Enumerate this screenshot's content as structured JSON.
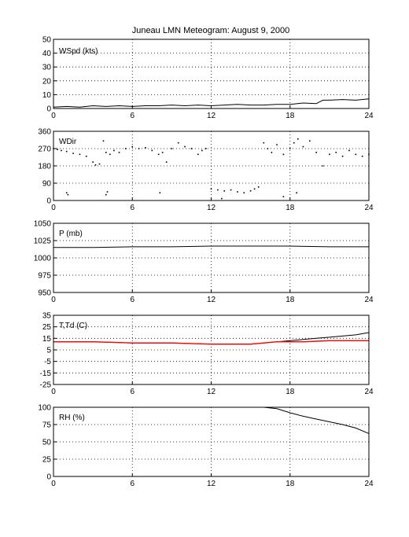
{
  "figure": {
    "title": "Juneau LMN Meteogram:    August  9, 2000"
  },
  "colors": {
    "line": "#000000",
    "dewpoint": "#ff0000",
    "background": "#ffffff"
  },
  "chart_data": [
    {
      "type": "line",
      "label": "WSpd (kts)",
      "xlim": [
        0,
        24
      ],
      "ylim": [
        0,
        50
      ],
      "xticks": [
        0,
        6,
        12,
        18,
        24
      ],
      "yticks": [
        0,
        10,
        20,
        30,
        40,
        50
      ],
      "grid": true,
      "series": [
        {
          "color": "#000000",
          "x": [
            0,
            1,
            2,
            3,
            4,
            5,
            6,
            7,
            8,
            9,
            10,
            11,
            12,
            13,
            14,
            15,
            16,
            17,
            18,
            19,
            20,
            20.5,
            21,
            22,
            23,
            24
          ],
          "y": [
            1,
            1.5,
            1,
            2,
            1.5,
            2,
            1.5,
            2,
            2,
            2.5,
            2,
            2.5,
            2,
            2.5,
            3,
            2.5,
            2.5,
            3,
            3,
            4,
            3.5,
            6,
            6,
            6.5,
            6,
            7
          ]
        }
      ]
    },
    {
      "type": "scatter",
      "label": "WDir",
      "xlim": [
        0,
        24
      ],
      "ylim": [
        0,
        360
      ],
      "xticks": [
        0,
        6,
        12,
        18,
        24
      ],
      "yticks": [
        0,
        90,
        180,
        270,
        360
      ],
      "grid": true,
      "series": [
        {
          "color": "#000000",
          "x": [
            0,
            0.3,
            0.6,
            1,
            1.5,
            2,
            2.5,
            3,
            3.2,
            3.5,
            3.8,
            4,
            4.3,
            4.6,
            5,
            5.5,
            6,
            6.5,
            7,
            7.5,
            8,
            8.3,
            8.6,
            9,
            9.5,
            10,
            10.5,
            11,
            11.3,
            11.6,
            12,
            12.5,
            13,
            13.5,
            14,
            14.5,
            15,
            15.3,
            15.6,
            16,
            16.3,
            16.6,
            17,
            17.5,
            18,
            18.3,
            18.6,
            19,
            19.5,
            20,
            20.5,
            21,
            21.5,
            22,
            22.5,
            23,
            23.5,
            24,
            1,
            1.1,
            4,
            4.1,
            8.1,
            12.8,
            17.5,
            18.5
          ],
          "y": [
            270,
            265,
            260,
            255,
            245,
            240,
            230,
            200,
            185,
            190,
            310,
            250,
            240,
            260,
            250,
            270,
            280,
            270,
            275,
            260,
            240,
            250,
            200,
            270,
            300,
            280,
            270,
            240,
            260,
            270,
            60,
            55,
            50,
            55,
            45,
            40,
            50,
            60,
            70,
            300,
            270,
            250,
            290,
            240,
            270,
            300,
            320,
            280,
            310,
            250,
            180,
            240,
            250,
            230,
            260,
            240,
            230,
            240,
            40,
            30,
            30,
            45,
            40,
            10,
            20,
            40
          ]
        }
      ]
    },
    {
      "type": "line",
      "label": "P (mb)",
      "xlim": [
        0,
        24
      ],
      "ylim": [
        950,
        1050
      ],
      "xticks": [
        0,
        6,
        12,
        18,
        24
      ],
      "yticks": [
        950,
        975,
        1000,
        1025,
        1050
      ],
      "grid": true,
      "series": [
        {
          "color": "#000000",
          "x": [
            0,
            3,
            6,
            9,
            12,
            15,
            18,
            21,
            24
          ],
          "y": [
            1015,
            1015,
            1016,
            1016,
            1017,
            1017,
            1017,
            1016,
            1016
          ]
        }
      ]
    },
    {
      "type": "line",
      "label": "T,Td (C)",
      "xlim": [
        0,
        24
      ],
      "ylim": [
        -25,
        35
      ],
      "xticks": [
        0,
        6,
        12,
        18,
        24
      ],
      "yticks": [
        -25,
        -15,
        -5,
        5,
        15,
        25,
        35
      ],
      "grid": true,
      "series": [
        {
          "color": "#000000",
          "x": [
            0,
            3,
            6,
            9,
            12,
            15,
            16,
            17,
            18,
            19,
            20,
            21,
            22,
            23,
            24
          ],
          "y": [
            12,
            12,
            11,
            11,
            10,
            10,
            11,
            12,
            13,
            14,
            15,
            16,
            17,
            18,
            20
          ]
        },
        {
          "color": "#ff0000",
          "x": [
            0,
            3,
            6,
            9,
            12,
            15,
            16,
            17,
            18,
            19,
            20,
            21,
            22,
            23,
            24
          ],
          "y": [
            12,
            12,
            11,
            11,
            10,
            10,
            11,
            12,
            12,
            12,
            12.5,
            13,
            13,
            13,
            13
          ]
        }
      ]
    },
    {
      "type": "line",
      "label": "RH (%)",
      "xlim": [
        0,
        24
      ],
      "ylim": [
        0,
        100
      ],
      "xticks": [
        0,
        6,
        12,
        18,
        24
      ],
      "yticks": [
        0,
        25,
        50,
        75,
        100
      ],
      "grid": true,
      "series": [
        {
          "color": "#000000",
          "x": [
            15.3,
            16,
            17,
            18,
            19,
            20,
            21,
            22,
            23,
            24
          ],
          "y": [
            100,
            100,
            98,
            92,
            87,
            83,
            79,
            75,
            70,
            62
          ]
        }
      ]
    }
  ]
}
